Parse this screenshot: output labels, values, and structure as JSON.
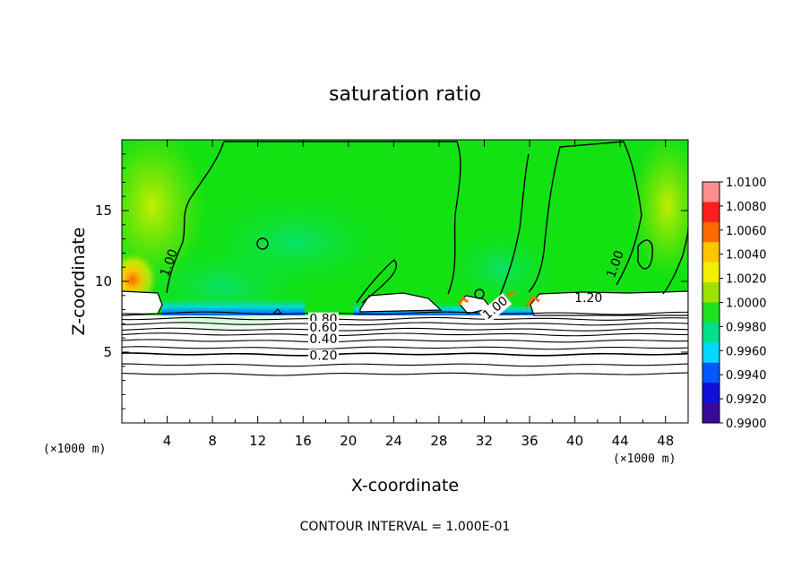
{
  "colors": {
    "background": "#ffffff",
    "field_green": "#12e212",
    "contour_line": "#000000"
  },
  "chart_data": {
    "type": "heatmap",
    "title": "saturation ratio",
    "xlabel": "X-coordinate",
    "ylabel": "Z-coordinate",
    "x_unit": "(×1000 m)",
    "x_unit_right": "(×1000 m)",
    "xlim": [
      0,
      50
    ],
    "ylim": [
      0,
      20
    ],
    "x_ticks": [
      4,
      8,
      12,
      16,
      20,
      24,
      28,
      32,
      36,
      40,
      44,
      48
    ],
    "y_ticks": [
      5,
      10,
      15
    ],
    "grid": false,
    "colorbar": {
      "levels": [
        "1.0100",
        "1.0080",
        "1.0060",
        "1.0040",
        "1.0020",
        "1.0000",
        "0.9980",
        "0.9960",
        "0.9940",
        "0.9920",
        "0.9900"
      ],
      "colors": [
        "#ff8f8f",
        "#ff1f1f",
        "#ff6a00",
        "#ffc400",
        "#f0f000",
        "#9ee000",
        "#1ee01e",
        "#00e08a",
        "#00d8ff",
        "#0058ff",
        "#1010d8",
        "#3a0a9a"
      ]
    },
    "contour_labels": [
      {
        "text": "1.00",
        "x": 4.2,
        "z": 11.3,
        "rotate": -70
      },
      {
        "text": "1.00",
        "x": 43.6,
        "z": 11.2,
        "rotate": -70
      },
      {
        "text": "1.20",
        "x": 41.2,
        "z": 8.8,
        "rotate": 0
      },
      {
        "text": "1.00",
        "x": 33.0,
        "z": 8.1,
        "rotate": -40
      },
      {
        "text": "0.80",
        "x": 17.8,
        "z": 7.3,
        "rotate": 0
      },
      {
        "text": "0.60",
        "x": 17.8,
        "z": 6.7,
        "rotate": 0
      },
      {
        "text": "0.40",
        "x": 17.8,
        "z": 5.9,
        "rotate": 0
      },
      {
        "text": "0.20",
        "x": 17.8,
        "z": 4.7,
        "rotate": 0
      }
    ],
    "layer_contours_z": [
      7.75,
      7.35,
      7.0,
      6.6,
      6.25,
      5.8,
      5.3,
      4.85,
      4.1,
      3.45
    ],
    "footer": "CONTOUR INTERVAL = 1.000E-01"
  }
}
